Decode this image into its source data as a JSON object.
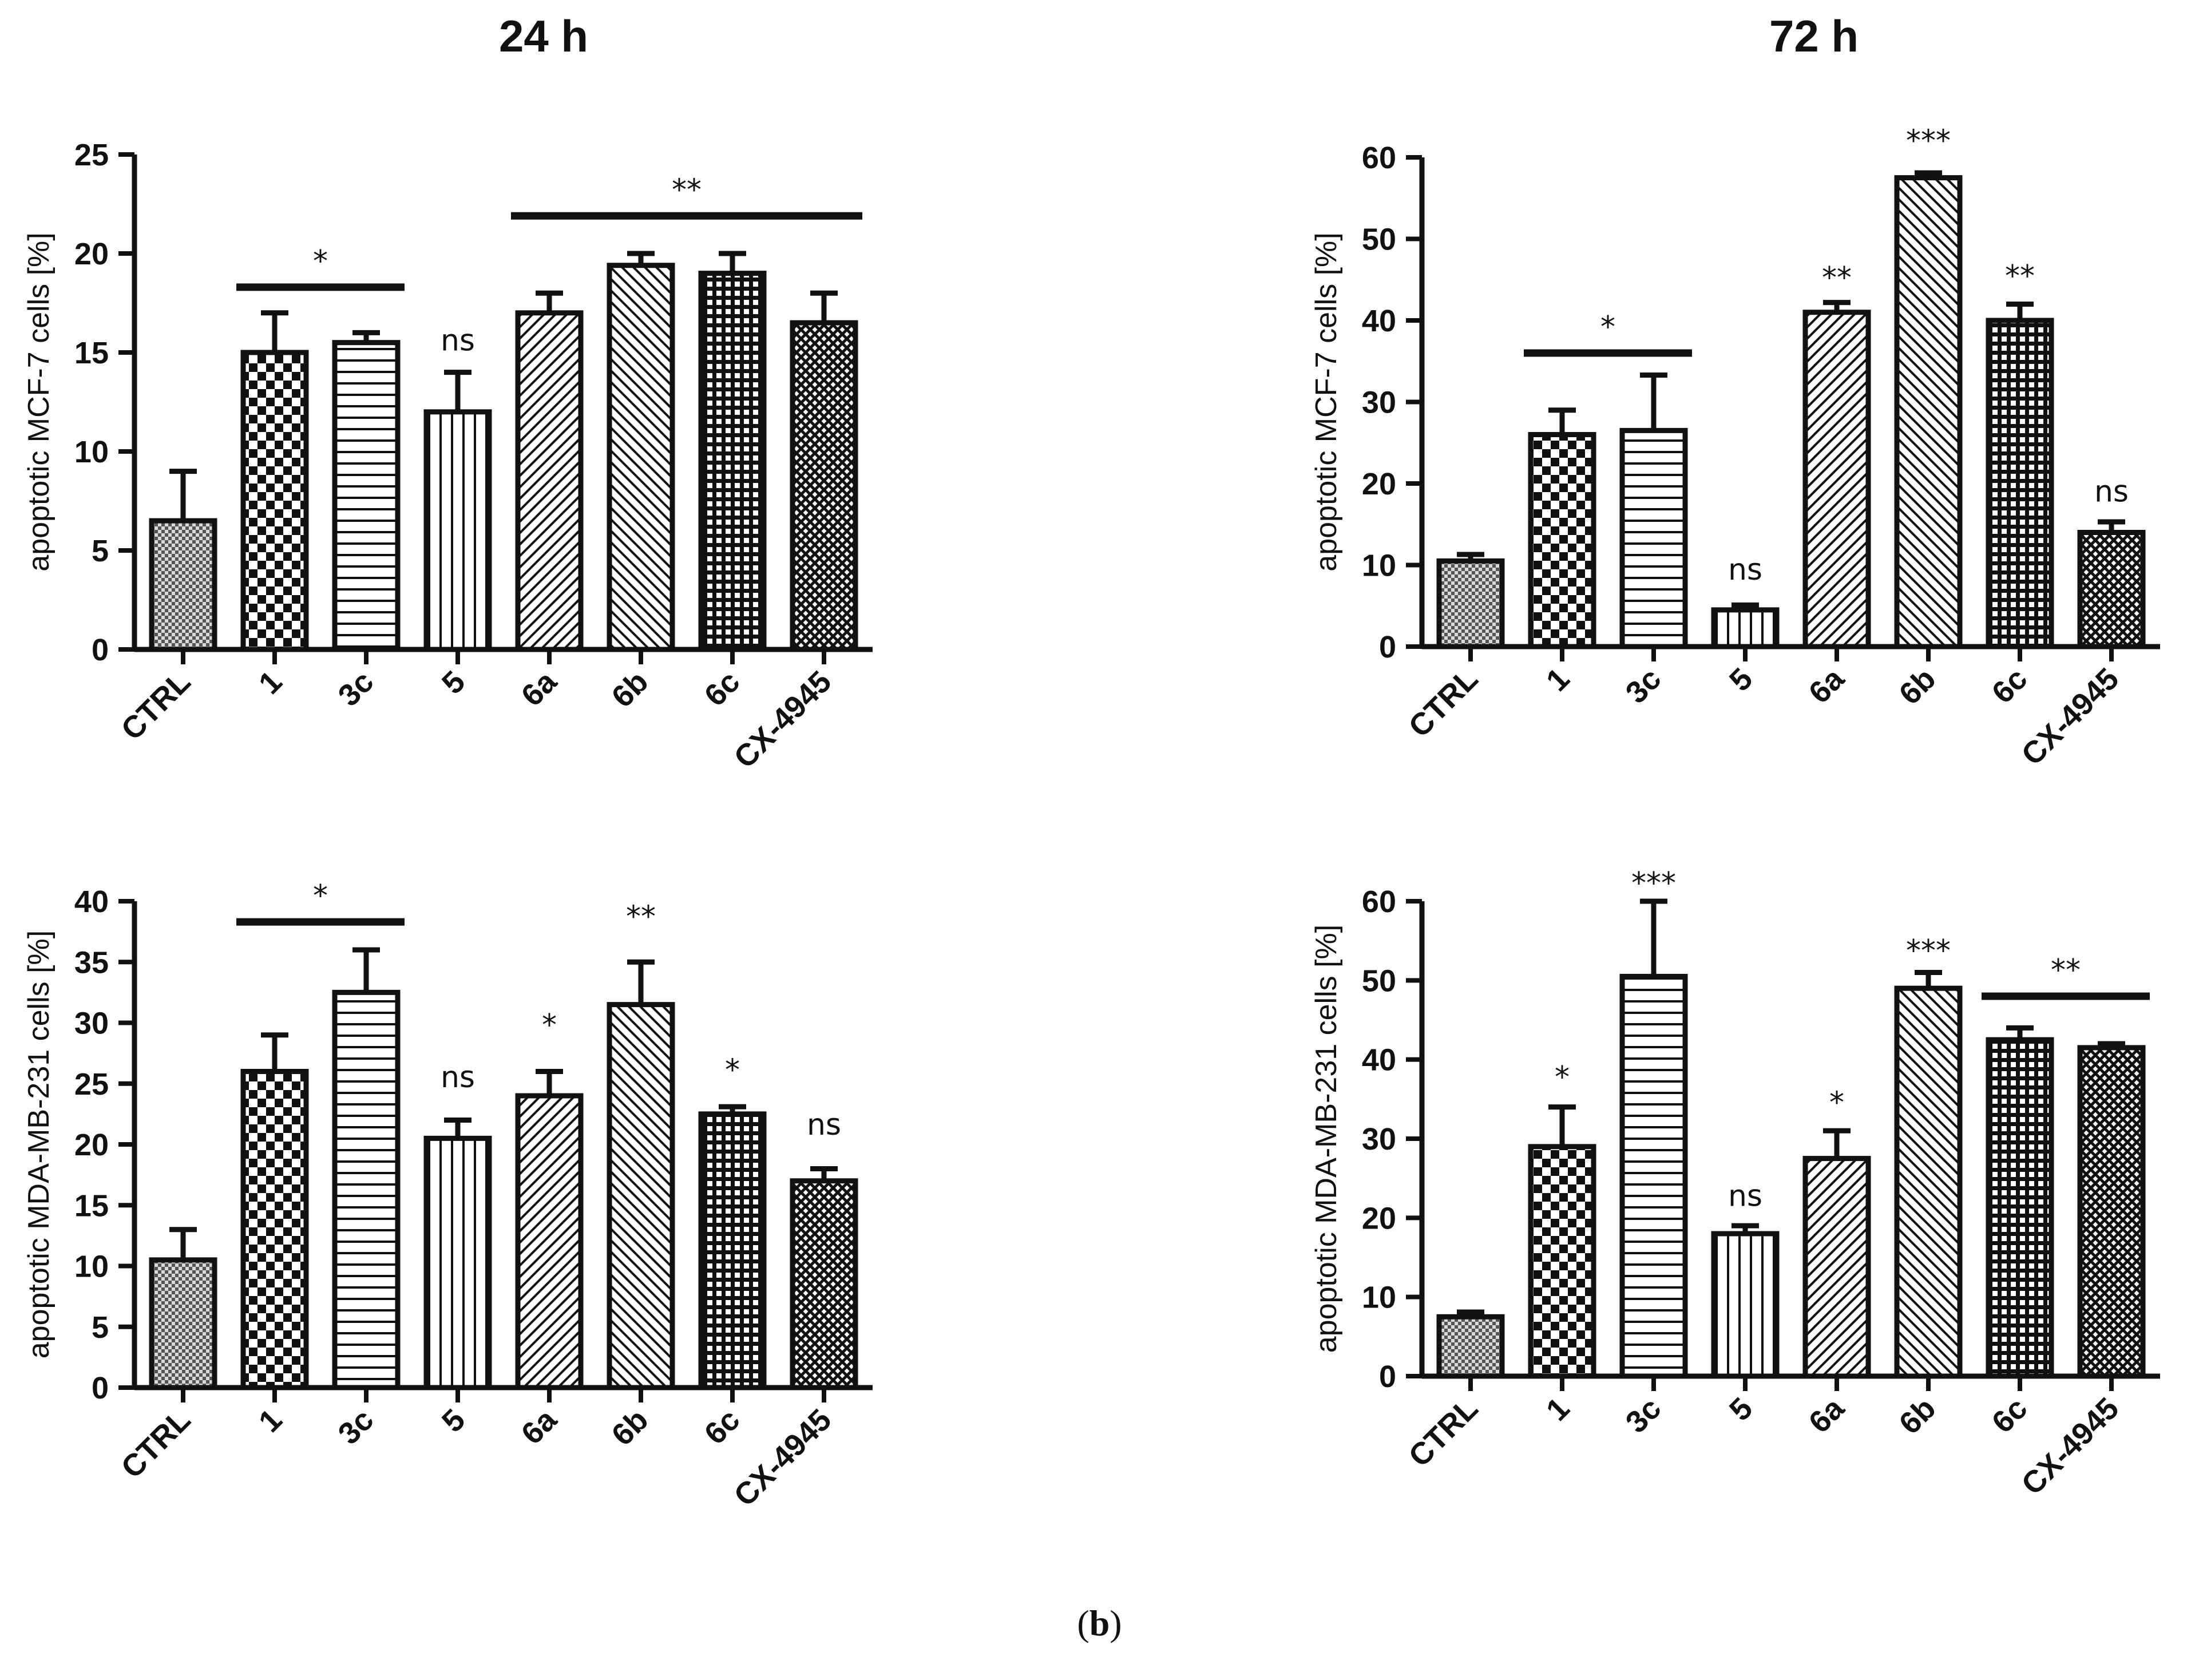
{
  "headings": {
    "left": "24 h",
    "right": "72 h"
  },
  "caption": {
    "open": "(",
    "letter": "b",
    "close": ")"
  },
  "chart_data": [
    {
      "id": "mcf7-24h",
      "type": "bar",
      "ylabel": "apoptotic MCF-7 cells [%]",
      "ylim": [
        0,
        25
      ],
      "yticks": [
        0,
        5,
        10,
        15,
        20,
        25
      ],
      "categories": [
        "CTRL",
        "1",
        "3c",
        "5",
        "6a",
        "6b",
        "6c",
        "CX-4945"
      ],
      "values": [
        6.5,
        15,
        15.5,
        12,
        17,
        19.4,
        19,
        16.5
      ],
      "errors": [
        2.5,
        2,
        0.5,
        2,
        1,
        0.6,
        1,
        1.5
      ],
      "patterns": [
        "finecheck",
        "check",
        "hstripe",
        "vstripe",
        "diag",
        "antidiag",
        "grid",
        "crosshatch"
      ],
      "significance": [
        {
          "label": "*",
          "bar": true,
          "from": 1,
          "to": 2,
          "y": 18.3
        },
        {
          "label": "ns",
          "bar": false,
          "from": 3,
          "to": 3,
          "y": 15.1
        },
        {
          "label": "**",
          "bar": true,
          "from": 4,
          "to": 7,
          "y": 21.9
        }
      ]
    },
    {
      "id": "mcf7-72h",
      "type": "bar",
      "ylabel": "apoptotic MCF-7 cells [%]",
      "ylim": [
        0,
        60
      ],
      "yticks": [
        0,
        10,
        20,
        30,
        40,
        50,
        60
      ],
      "categories": [
        "CTRL",
        "1",
        "3c",
        "5",
        "6a",
        "6b",
        "6c",
        "CX-4945"
      ],
      "values": [
        10.5,
        26,
        26.5,
        4.5,
        41,
        57.5,
        40,
        14
      ],
      "errors": [
        0.8,
        3,
        6.8,
        0.6,
        1.2,
        0.6,
        2,
        1.3
      ],
      "patterns": [
        "finecheck",
        "check",
        "hstripe",
        "vstripe",
        "diag",
        "antidiag",
        "grid",
        "crosshatch"
      ],
      "significance": [
        {
          "label": "*",
          "bar": true,
          "from": 1,
          "to": 2,
          "y": 36
        },
        {
          "label": "ns",
          "bar": false,
          "from": 3,
          "to": 3,
          "y": 8.2
        },
        {
          "label": "**",
          "bar": false,
          "from": 4,
          "to": 4,
          "y": 44
        },
        {
          "label": "***",
          "bar": false,
          "from": 5,
          "to": 5,
          "y": 60.8
        },
        {
          "label": "**",
          "bar": false,
          "from": 6,
          "to": 6,
          "y": 44.2
        },
        {
          "label": "ns",
          "bar": false,
          "from": 7,
          "to": 7,
          "y": 17.8
        }
      ]
    },
    {
      "id": "mda-24h",
      "type": "bar",
      "ylabel": "apoptotic MDA-MB-231 cells [%]",
      "ylim": [
        0,
        40
      ],
      "yticks": [
        0,
        5,
        10,
        15,
        20,
        25,
        30,
        35,
        40
      ],
      "categories": [
        "CTRL",
        "1",
        "3c",
        "5",
        "6a",
        "6b",
        "6c",
        "CX-4945"
      ],
      "values": [
        10.5,
        26,
        32.5,
        20.5,
        24,
        31.5,
        22.5,
        17
      ],
      "errors": [
        2.5,
        3,
        3.5,
        1.5,
        2,
        3.5,
        0.6,
        1
      ],
      "patterns": [
        "finecheck",
        "check",
        "hstripe",
        "vstripe",
        "diag",
        "antidiag",
        "grid",
        "crosshatch"
      ],
      "significance": [
        {
          "label": "*",
          "bar": true,
          "from": 1,
          "to": 2,
          "y": 38.3
        },
        {
          "label": "ns",
          "bar": false,
          "from": 3,
          "to": 3,
          "y": 24.7
        },
        {
          "label": "*",
          "bar": false,
          "from": 4,
          "to": 4,
          "y": 29
        },
        {
          "label": "**",
          "bar": false,
          "from": 5,
          "to": 5,
          "y": 37.9
        },
        {
          "label": "*",
          "bar": false,
          "from": 6,
          "to": 6,
          "y": 25.3
        },
        {
          "label": "ns",
          "bar": false,
          "from": 7,
          "to": 7,
          "y": 20.8
        }
      ]
    },
    {
      "id": "mda-72h",
      "type": "bar",
      "ylabel": "apoptotic MDA-MB-231 cells [%]",
      "ylim": [
        0,
        60
      ],
      "yticks": [
        0,
        10,
        20,
        30,
        40,
        50,
        60
      ],
      "categories": [
        "CTRL",
        "1",
        "3c",
        "5",
        "6a",
        "6b",
        "6c",
        "CX-4945"
      ],
      "values": [
        7.5,
        29,
        50.5,
        18,
        27.5,
        49,
        42.5,
        41.5
      ],
      "errors": [
        0.6,
        5,
        9.5,
        1,
        3.5,
        2,
        1.5,
        0.5
      ],
      "patterns": [
        "finecheck",
        "check",
        "hstripe",
        "vstripe",
        "diag",
        "antidiag",
        "grid",
        "crosshatch"
      ],
      "significance": [
        {
          "label": "*",
          "bar": false,
          "from": 1,
          "to": 1,
          "y": 36.5
        },
        {
          "label": "***",
          "bar": false,
          "from": 2,
          "to": 2,
          "y": 61
        },
        {
          "label": "ns",
          "bar": false,
          "from": 3,
          "to": 3,
          "y": 21.5
        },
        {
          "label": "*",
          "bar": false,
          "from": 4,
          "to": 4,
          "y": 33.3
        },
        {
          "label": "***",
          "bar": false,
          "from": 5,
          "to": 5,
          "y": 52.5
        },
        {
          "label": "**",
          "bar": true,
          "from": 6,
          "to": 7,
          "y": 48
        }
      ]
    }
  ]
}
